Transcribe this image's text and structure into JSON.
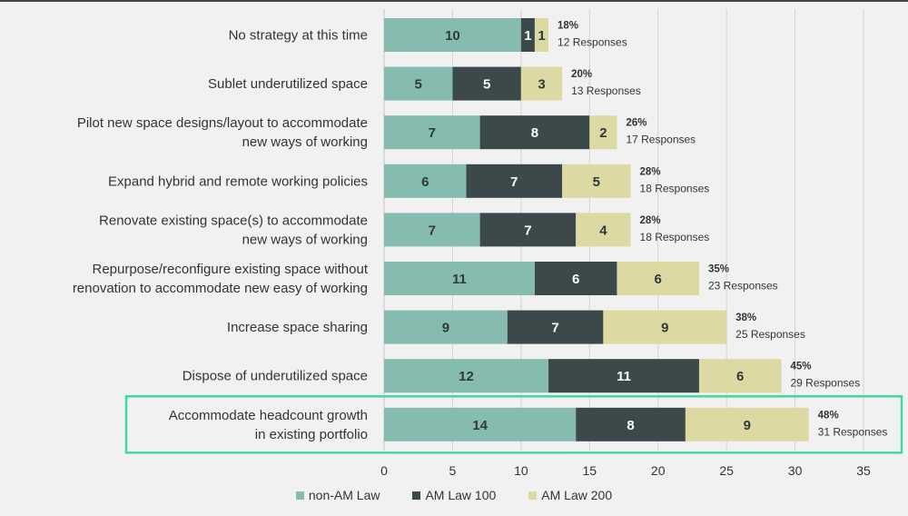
{
  "chart_data": {
    "type": "bar",
    "orientation": "horizontal",
    "stacked": true,
    "categories": [
      [
        "No strategy at this time"
      ],
      [
        "Sublet underutilized space"
      ],
      [
        "Pilot new space designs/layout to accommodate",
        "new ways of working"
      ],
      [
        "Expand hybrid and remote working policies"
      ],
      [
        "Renovate existing space(s) to accommodate",
        "new ways of working"
      ],
      [
        "Repurpose/reconfigure existing space without",
        "renovation to accommodate new easy of working"
      ],
      [
        "Increase space sharing"
      ],
      [
        "Dispose of underutilized space"
      ],
      [
        "Accommodate headcount growth",
        "in existing portfolio"
      ]
    ],
    "series": [
      {
        "name": "non-AM Law",
        "color": "#85bcaf",
        "values": [
          10,
          5,
          7,
          6,
          7,
          11,
          9,
          12,
          14
        ]
      },
      {
        "name": "AM Law 100",
        "color": "#3c494b",
        "values": [
          1,
          5,
          8,
          7,
          7,
          6,
          7,
          11,
          8
        ]
      },
      {
        "name": "AM Law 200",
        "color": "#ddd9a2",
        "values": [
          1,
          3,
          2,
          5,
          4,
          6,
          9,
          6,
          9
        ]
      }
    ],
    "percent_labels": [
      "18%",
      "20%",
      "26%",
      "28%",
      "28%",
      "35%",
      "38%",
      "45%",
      "48%"
    ],
    "response_labels": [
      "12 Responses",
      "13 Responses",
      "17 Responses",
      "18 Responses",
      "18 Responses",
      "23 Responses",
      "25 Responses",
      "29 Responses",
      "31 Responses"
    ],
    "xlim": [
      0,
      35
    ],
    "xticks": [
      0,
      5,
      10,
      15,
      20,
      25,
      30,
      35
    ],
    "grid": "vertical",
    "legend": "bottom-center",
    "highlighted_category_index": 8,
    "highlight_color": "#3fd99b"
  }
}
